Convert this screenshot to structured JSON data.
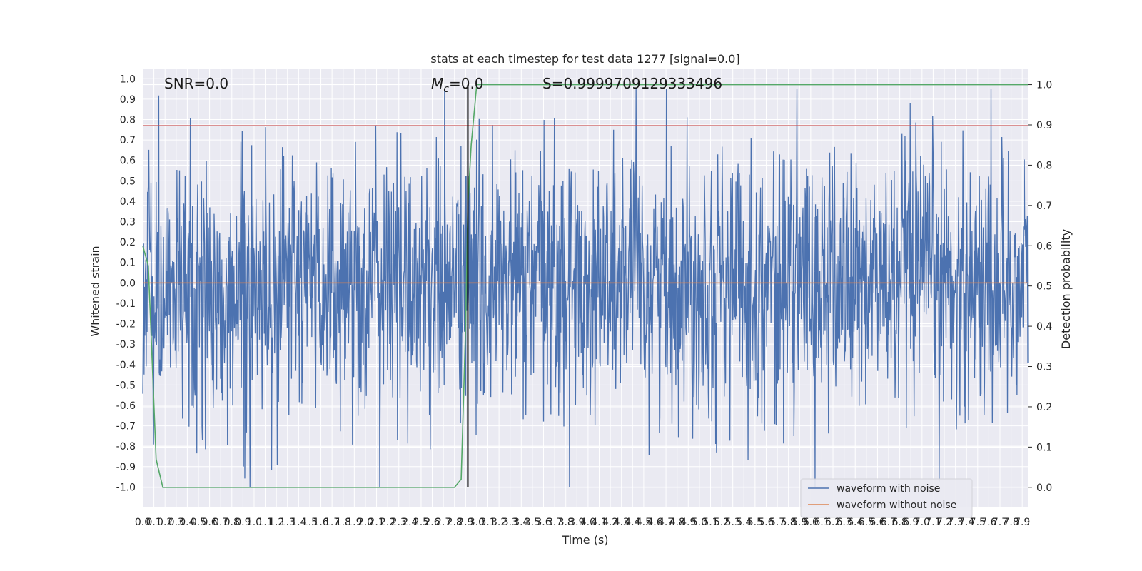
{
  "chart_data": {
    "type": "line",
    "title": "stats at each timestep for test data 1277 [signal=0.0]",
    "xlabel": "Time (s)",
    "ylabel": "Whitened strain",
    "ylabel_right": "Detection probability",
    "xlim": [
      0.0,
      7.95
    ],
    "ylim": [
      -1.1,
      1.05
    ],
    "ylim_right": [
      -0.05,
      1.04
    ],
    "x_tick_step": 0.1,
    "x_ticks_count": 80,
    "y_ticks": [
      "-1.0",
      "-0.9",
      "-0.8",
      "-0.7",
      "-0.6",
      "-0.5",
      "-0.4",
      "-0.3",
      "-0.2",
      "-0.1",
      "0.0",
      "0.1",
      "0.2",
      "0.3",
      "0.4",
      "0.5",
      "0.6",
      "0.7",
      "0.8",
      "0.9",
      "1.0"
    ],
    "y_ticks_right": [
      "0.0",
      "0.1",
      "0.2",
      "0.3",
      "0.4",
      "0.5",
      "0.6",
      "0.7",
      "0.8",
      "0.9",
      "1.0"
    ],
    "grid": true,
    "legend_position": "lower-right",
    "series": [
      {
        "name": "waveform with noise",
        "color": "#4c72b0",
        "kind": "noise",
        "samples": 2048,
        "seed": 1277,
        "typical_amplitude": 0.45,
        "max": 0.95,
        "min": -1.0
      },
      {
        "name": "waveform without noise",
        "color": "#dd8452",
        "kind": "flat",
        "value": 0.0
      }
    ],
    "threshold_line": {
      "value": 0.77,
      "color": "#c44e52"
    },
    "detection_probability": {
      "color": "#55a868",
      "x": [
        0.0,
        0.05,
        0.12,
        0.18,
        2.8,
        2.86,
        2.9,
        2.92,
        2.95,
        3.0,
        7.95
      ],
      "y": [
        0.6,
        0.55,
        0.07,
        0.0,
        0.0,
        0.02,
        0.4,
        0.7,
        0.85,
        1.0,
        1.0
      ]
    },
    "marker_line": {
      "x": 2.92,
      "color": "#000000"
    },
    "annotations": {
      "snr": "SNR=0.0",
      "mc_symbol": "M",
      "mc_subscript": "c",
      "mc_value": "=0.0",
      "s": "S=0.9999709129333496"
    }
  }
}
